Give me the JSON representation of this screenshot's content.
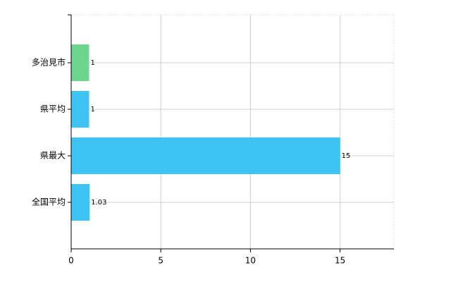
{
  "chart_data": {
    "type": "barh",
    "categories": [
      "多治見市",
      "県平均",
      "県最大",
      "全国平均"
    ],
    "values": [
      1,
      1,
      15,
      1.03
    ],
    "colors": [
      "#6dd58c",
      "#3ec3f5",
      "#3ec3f5",
      "#3ec3f5"
    ],
    "xlim": [
      0,
      18
    ],
    "xticks": [
      0,
      5,
      10,
      15
    ],
    "grid": true
  }
}
